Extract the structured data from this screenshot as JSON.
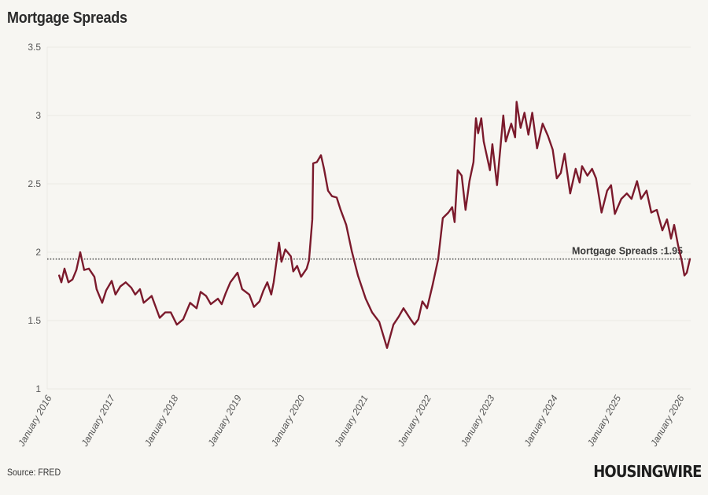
{
  "title": "Mortgage Spreads",
  "source": "Source: FRED",
  "logo": "HOUSINGWIRE",
  "colors": {
    "line": "#7b1a2c",
    "background": "#f7f6f2",
    "grid": "#ebe9e4",
    "reference": "#555555"
  },
  "chart_data": {
    "type": "line",
    "title": "Mortgage Spreads",
    "xlabel": "",
    "ylabel": "",
    "ylim": [
      1,
      3.5
    ],
    "xlim": [
      "2016-01-01",
      "2026-03-01"
    ],
    "yticks": [
      "1",
      "1.5",
      "2",
      "2.5",
      "3",
      "3.5"
    ],
    "xticks": [
      "January 2016",
      "January 2017",
      "January 2018",
      "January 2019",
      "January 2020",
      "January 2021",
      "January 2022",
      "January 2023",
      "January 2024",
      "January 2025",
      "January 2026"
    ],
    "grid": "horizontal",
    "reference_line": {
      "value": 1.95,
      "label": "Mortgage Spreads :1.95",
      "style": "dotted"
    },
    "series": [
      {
        "x": [
          "2016-03-01",
          "2016-03-14",
          "2016-04-01",
          "2016-04-24",
          "2016-05-17",
          "2016-06-09",
          "2016-07-01",
          "2016-07-24",
          "2016-08-20",
          "2016-09-21",
          "2016-10-04",
          "2016-11-05",
          "2016-11-28",
          "2016-12-30",
          "2017-01-21",
          "2017-02-18",
          "2017-03-21",
          "2017-04-22",
          "2017-05-15",
          "2017-06-11",
          "2017-07-03",
          "2017-08-18",
          "2017-10-03",
          "2017-11-04",
          "2017-12-06",
          "2018-01-10",
          "2018-02-16",
          "2018-03-28",
          "2018-05-04",
          "2018-05-27",
          "2018-06-28",
          "2018-07-25",
          "2018-09-04",
          "2018-09-26",
          "2018-10-19",
          "2018-11-15",
          "2018-12-26",
          "2019-01-22",
          "2019-03-04",
          "2019-03-31",
          "2019-05-02",
          "2019-05-25",
          "2019-06-16",
          "2019-07-09",
          "2019-07-23",
          "2019-08-23",
          "2019-09-06",
          "2019-09-28",
          "2019-10-30",
          "2019-11-13",
          "2019-12-05",
          "2019-12-28",
          "2020-01-29",
          "2020-02-12",
          "2020-03-02",
          "2020-03-07",
          "2020-03-29",
          "2020-04-21",
          "2020-05-09",
          "2020-06-01",
          "2020-06-24",
          "2020-07-21",
          "2020-08-13",
          "2020-09-14",
          "2020-10-16",
          "2020-11-21",
          "2021-01-05",
          "2021-02-11",
          "2021-03-24",
          "2021-05-08",
          "2021-06-14",
          "2021-07-15",
          "2021-08-11",
          "2021-09-21",
          "2021-10-13",
          "2021-11-05",
          "2021-11-28",
          "2021-12-25",
          "2022-01-26",
          "2022-02-27",
          "2022-03-26",
          "2022-04-27",
          "2022-05-19",
          "2022-06-02",
          "2022-06-20",
          "2022-07-13",
          "2022-08-04",
          "2022-08-27",
          "2022-09-19",
          "2022-10-03",
          "2022-10-16",
          "2022-11-03",
          "2022-11-17",
          "2022-12-23",
          "2023-01-06",
          "2023-02-02",
          "2023-03-10",
          "2023-03-24",
          "2023-04-25",
          "2023-05-17",
          "2023-05-26",
          "2023-06-18",
          "2023-07-10",
          "2023-08-02",
          "2023-08-24",
          "2023-09-21",
          "2023-10-23",
          "2023-11-23",
          "2023-12-20",
          "2024-01-13",
          "2024-02-05",
          "2024-02-27",
          "2024-03-30",
          "2024-05-01",
          "2024-05-24",
          "2024-06-07",
          "2024-07-08",
          "2024-08-04",
          "2024-08-27",
          "2024-09-28",
          "2024-10-30",
          "2024-11-22",
          "2024-12-14",
          "2025-01-20",
          "2025-02-21",
          "2025-03-20",
          "2025-04-21",
          "2025-05-14",
          "2025-06-15",
          "2025-07-12",
          "2025-08-13",
          "2025-09-14",
          "2025-10-11",
          "2025-11-03",
          "2025-11-21",
          "2025-12-14",
          "2026-01-05",
          "2026-01-19",
          "2026-02-02",
          "2026-02-20"
        ],
        "y": [
          1.83,
          1.78,
          1.88,
          1.78,
          1.8,
          1.87,
          2.0,
          1.87,
          1.88,
          1.82,
          1.73,
          1.63,
          1.72,
          1.79,
          1.69,
          1.75,
          1.78,
          1.74,
          1.69,
          1.73,
          1.63,
          1.68,
          1.52,
          1.56,
          1.56,
          1.47,
          1.51,
          1.63,
          1.59,
          1.71,
          1.68,
          1.62,
          1.66,
          1.62,
          1.7,
          1.78,
          1.85,
          1.73,
          1.69,
          1.6,
          1.64,
          1.72,
          1.78,
          1.69,
          1.78,
          2.07,
          1.93,
          2.02,
          1.97,
          1.86,
          1.9,
          1.82,
          1.88,
          1.94,
          2.24,
          2.65,
          2.66,
          2.71,
          2.61,
          2.45,
          2.41,
          2.4,
          2.31,
          2.2,
          2.01,
          1.83,
          1.66,
          1.56,
          1.49,
          1.3,
          1.47,
          1.53,
          1.59,
          1.51,
          1.47,
          1.51,
          1.64,
          1.59,
          1.76,
          1.95,
          2.25,
          2.29,
          2.33,
          2.22,
          2.6,
          2.56,
          2.31,
          2.52,
          2.66,
          2.98,
          2.87,
          2.98,
          2.81,
          2.6,
          2.79,
          2.49,
          3.0,
          2.81,
          2.94,
          2.84,
          3.1,
          2.91,
          3.02,
          2.86,
          3.02,
          2.76,
          2.94,
          2.85,
          2.75,
          2.54,
          2.58,
          2.72,
          2.43,
          2.61,
          2.51,
          2.63,
          2.56,
          2.61,
          2.54,
          2.29,
          2.45,
          2.49,
          2.28,
          2.39,
          2.43,
          2.39,
          2.52,
          2.39,
          2.45,
          2.29,
          2.31,
          2.16,
          2.24,
          2.1,
          2.2,
          2.05,
          1.93,
          1.83,
          1.85,
          1.95
        ]
      }
    ]
  }
}
